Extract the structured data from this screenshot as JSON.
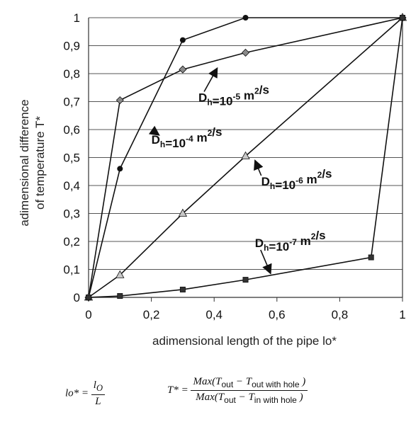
{
  "chart_data": {
    "type": "line",
    "title": "",
    "xlabel": "adimensional length of the pipe   lo*",
    "ylabel_line1": "adimensional difference",
    "ylabel_line2": "of temperature   T*",
    "xlim": [
      0,
      1
    ],
    "ylim": [
      0,
      1
    ],
    "x_ticks": [
      "0",
      "0,2",
      "0,4",
      "0,6",
      "0,8",
      "1"
    ],
    "y_ticks": [
      "0",
      "0,1",
      "0,2",
      "0,3",
      "0,4",
      "0,5",
      "0,6",
      "0,7",
      "0,8",
      "0,9",
      "1"
    ],
    "grid": "horizontal",
    "series": [
      {
        "label_base": "D",
        "label_sub": "h",
        "label_mid": "=10",
        "label_exp": "-4",
        "label_unit": " m",
        "label_unit_exp": "2",
        "label_tail": "/s",
        "marker": "circle",
        "color": "#111111",
        "x": [
          0,
          0.1,
          0.3,
          0.5,
          1.0
        ],
        "y": [
          0,
          0.46,
          0.92,
          1.0,
          1.0
        ]
      },
      {
        "label_base": "D",
        "label_sub": "h",
        "label_mid": "=10",
        "label_exp": "-5",
        "label_unit": " m",
        "label_unit_exp": "2",
        "label_tail": "/s",
        "marker": "diamond",
        "color": "#8a8a8a",
        "x": [
          0,
          0.1,
          0.3,
          0.5,
          1.0
        ],
        "y": [
          0,
          0.705,
          0.815,
          0.875,
          1.0
        ]
      },
      {
        "label_base": "D",
        "label_sub": "h",
        "label_mid": "=10",
        "label_exp": "-6",
        "label_unit": " m",
        "label_unit_exp": "2",
        "label_tail": "/s",
        "marker": "triangle",
        "color": "#c8c8c8",
        "x": [
          0,
          0.1,
          0.3,
          0.5,
          1.0
        ],
        "y": [
          0,
          0.08,
          0.3,
          0.505,
          1.0
        ]
      },
      {
        "label_base": "D",
        "label_sub": "h",
        "label_mid": "=10",
        "label_exp": "-7",
        "label_unit": " m",
        "label_unit_exp": "2",
        "label_tail": "/s",
        "marker": "square",
        "color": "#333333",
        "x": [
          0,
          0.1,
          0.3,
          0.5,
          0.9,
          1.0
        ],
        "y": [
          0,
          0.005,
          0.028,
          0.063,
          0.143,
          1.0
        ]
      }
    ],
    "annotations": [
      {
        "series": 0,
        "at": [
          0.2,
          0.55
        ],
        "arrow_to": [
          0.225,
          0.58
        ]
      },
      {
        "series": 1,
        "at": [
          0.35,
          0.7
        ],
        "arrow_to": [
          0.41,
          0.82
        ]
      },
      {
        "series": 2,
        "at": [
          0.55,
          0.4
        ],
        "arrow_to": [
          0.53,
          0.49
        ]
      },
      {
        "series": 3,
        "at": [
          0.53,
          0.18
        ],
        "arrow_to": [
          0.58,
          0.085
        ]
      }
    ]
  },
  "formulas": {
    "lo": {
      "lhs": "lo* =",
      "num": "l",
      "num_sub": "O",
      "den": "L"
    },
    "t": {
      "lhs": "T* =",
      "num_pre": "Max(T",
      "num_s1": "out",
      "num_mid": " − T",
      "num_s2": "out with hole",
      "num_post": " )",
      "den_pre": "Max(T",
      "den_s1": "out",
      "den_mid": " − T",
      "den_s2": "in with hole",
      "den_post": " )"
    }
  }
}
